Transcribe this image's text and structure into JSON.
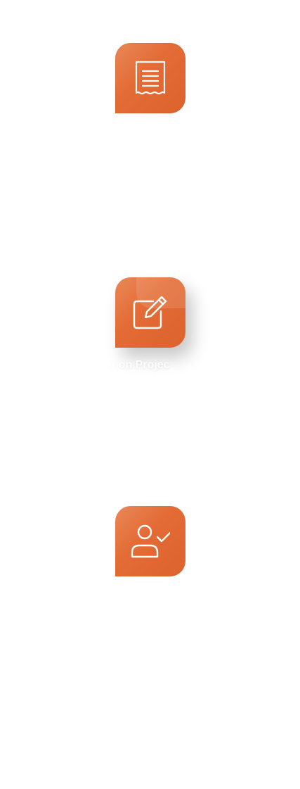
{
  "colors": {
    "tile_accent": "#e36b35",
    "icon_stroke": "#ffffff",
    "background": "#ffffff"
  },
  "tiles": [
    {
      "icon": "receipt-icon"
    },
    {
      "icon": "edit-icon",
      "caption": "ation Projec"
    },
    {
      "icon": "user-check-icon"
    }
  ]
}
